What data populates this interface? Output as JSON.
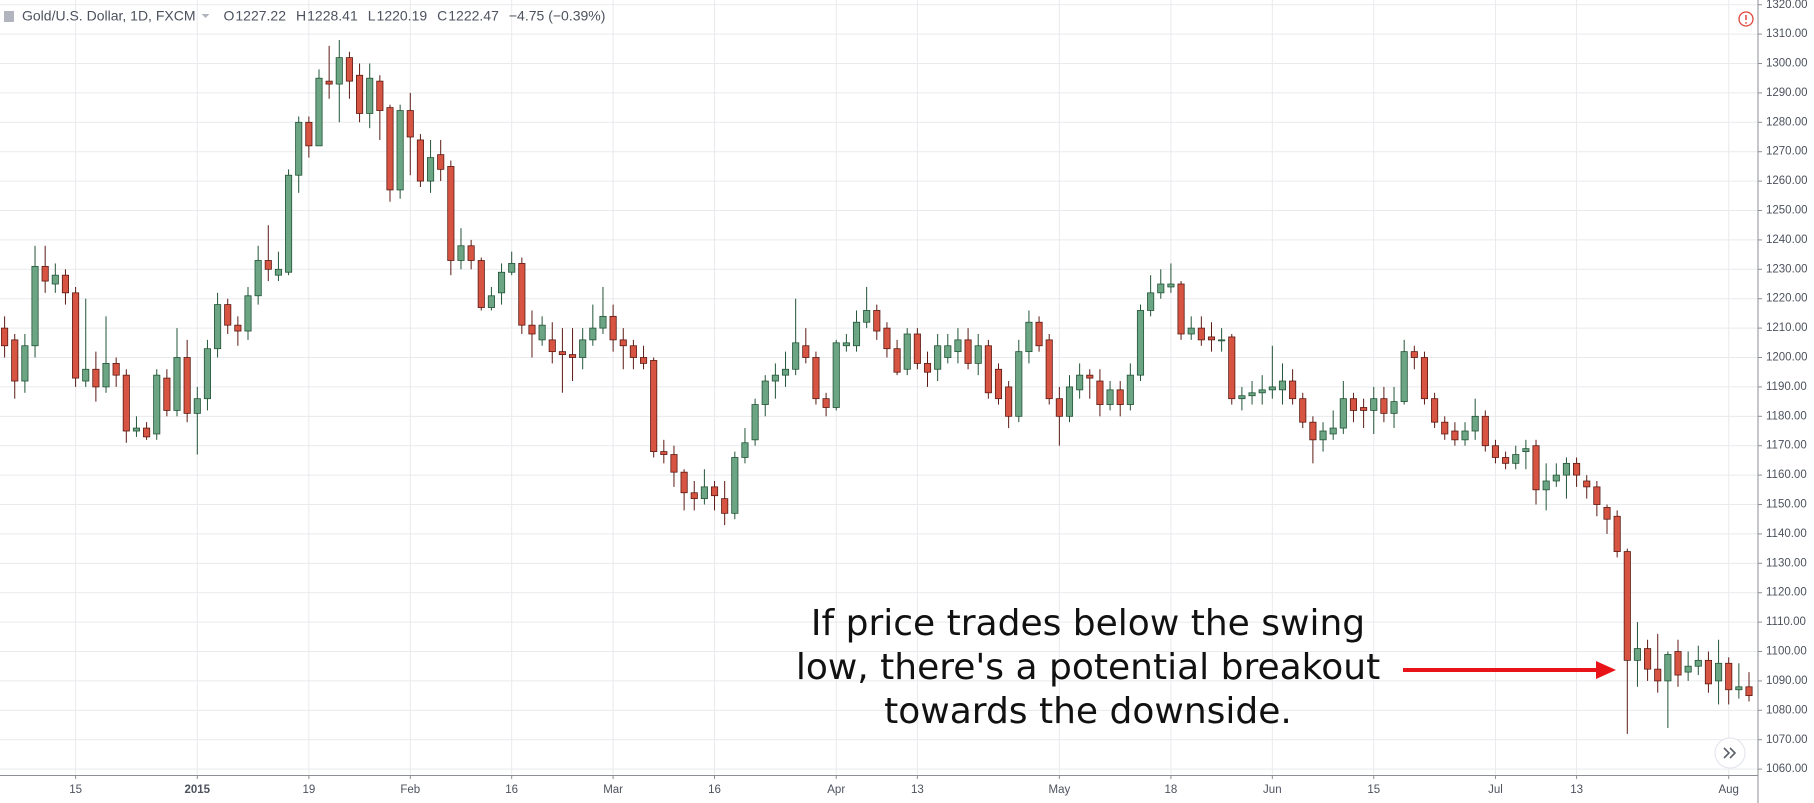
{
  "header": {
    "symbol": "Gold/U.S. Dollar, 1D, FXCM",
    "ohlc": [
      {
        "label": "O",
        "value": 1227.22
      },
      {
        "label": "H",
        "value": 1228.41
      },
      {
        "label": "L",
        "value": 1220.19
      },
      {
        "label": "C",
        "value": 1222.47
      }
    ],
    "change": "−4.75 (−0.39%)"
  },
  "chart_data": {
    "type": "candlestick",
    "categories": [
      null,
      null,
      null,
      null,
      null,
      null,
      null,
      "15",
      null,
      null,
      null,
      null,
      null,
      null,
      null,
      null,
      null,
      null,
      null,
      "2015",
      null,
      null,
      null,
      null,
      null,
      null,
      null,
      null,
      null,
      null,
      "19",
      null,
      null,
      null,
      null,
      null,
      null,
      null,
      null,
      null,
      "Feb",
      null,
      null,
      null,
      null,
      null,
      null,
      null,
      null,
      null,
      "16",
      null,
      null,
      null,
      null,
      null,
      null,
      null,
      null,
      null,
      "Mar",
      null,
      null,
      null,
      null,
      null,
      null,
      null,
      null,
      null,
      "16",
      null,
      null,
      null,
      null,
      null,
      null,
      null,
      null,
      null,
      null,
      null,
      "Apr",
      null,
      null,
      null,
      null,
      null,
      null,
      null,
      "13",
      null,
      null,
      null,
      null,
      null,
      null,
      null,
      null,
      null,
      null,
      null,
      null,
      null,
      "May",
      null,
      null,
      null,
      null,
      null,
      null,
      null,
      null,
      null,
      null,
      "18",
      null,
      null,
      null,
      null,
      null,
      null,
      null,
      null,
      null,
      "Jun",
      null,
      null,
      null,
      null,
      null,
      null,
      null,
      null,
      null,
      "15",
      null,
      null,
      null,
      null,
      null,
      null,
      null,
      null,
      null,
      null,
      null,
      "Jul",
      null,
      null,
      null,
      null,
      null,
      null,
      null,
      "13",
      null,
      null,
      null,
      null,
      null,
      null,
      null,
      null,
      null,
      null,
      null,
      null,
      null,
      null,
      "Aug",
      null,
      null
    ],
    "open": [
      1210,
      1206,
      1192,
      1204,
      1231,
      1225,
      1228,
      1222,
      1192,
      1196,
      1190,
      1198,
      1194,
      1175,
      1176,
      1174,
      1193,
      1182,
      1200,
      1181,
      1186,
      1203,
      1218,
      1211,
      1209,
      1221,
      1233,
      1228,
      1229,
      1262,
      1280,
      1272,
      1294,
      1293,
      1302,
      1296,
      1283,
      1294,
      1285,
      1257,
      1284,
      1274,
      1260,
      1269,
      1265,
      1233,
      1238,
      1233,
      1217,
      1222,
      1229,
      1232,
      1211,
      1206,
      1206,
      1202,
      1201,
      1200,
      1206,
      1210,
      1214,
      1206,
      1204,
      1200,
      1199,
      1168,
      1167,
      1161,
      1154,
      1152,
      1156,
      1152,
      1147,
      1166,
      1172,
      1184,
      1192,
      1194,
      1196,
      1204,
      1200,
      1186,
      1183,
      1204,
      1204,
      1212,
      1216,
      1210,
      1203,
      1196,
      1208,
      1198,
      1196,
      1200,
      1202,
      1206,
      1198,
      1204,
      1196,
      1190,
      1180,
      1202,
      1212,
      1206,
      1186,
      1180,
      1189,
      1194,
      1192,
      1184,
      1189,
      1184,
      1194,
      1216,
      1222,
      1224,
      1225,
      1208,
      1210,
      1207,
      1206,
      1207,
      1186,
      1187,
      1188,
      1189,
      1189,
      1192,
      1186,
      1178,
      1172,
      1174,
      1176,
      1186,
      1183,
      1182,
      1186,
      1181,
      1185,
      1202,
      1200,
      1186,
      1178,
      1175,
      1172,
      1175,
      1180,
      1170,
      1166,
      1164,
      1168,
      1170,
      1155,
      1158,
      1160,
      1164,
      1158,
      1156,
      1149,
      1146,
      1134,
      1097,
      1101,
      1094,
      1090,
      1100,
      1093,
      1095,
      1097,
      1090,
      1096,
      1087,
      1088
    ],
    "high": [
      1214,
      1208,
      1208,
      1238,
      1238,
      1232,
      1230,
      1224,
      1220,
      1202,
      1214,
      1200,
      1196,
      1180,
      1178,
      1196,
      1196,
      1210,
      1206,
      1190,
      1206,
      1222,
      1220,
      1214,
      1224,
      1238,
      1245,
      1236,
      1264,
      1282,
      1282,
      1298,
      1306,
      1308,
      1304,
      1300,
      1300,
      1296,
      1286,
      1286,
      1290,
      1276,
      1274,
      1274,
      1267,
      1244,
      1240,
      1234,
      1224,
      1232,
      1236,
      1234,
      1216,
      1214,
      1212,
      1210,
      1210,
      1210,
      1218,
      1224,
      1218,
      1210,
      1206,
      1204,
      1200,
      1172,
      1170,
      1162,
      1158,
      1162,
      1158,
      1158,
      1168,
      1176,
      1186,
      1194,
      1198,
      1202,
      1220,
      1210,
      1202,
      1188,
      1206,
      1208,
      1216,
      1224,
      1218,
      1212,
      1206,
      1210,
      1210,
      1202,
      1208,
      1208,
      1210,
      1210,
      1208,
      1206,
      1198,
      1192,
      1206,
      1216,
      1214,
      1208,
      1190,
      1194,
      1198,
      1196,
      1196,
      1192,
      1192,
      1198,
      1218,
      1228,
      1230,
      1232,
      1226,
      1214,
      1214,
      1212,
      1210,
      1208,
      1190,
      1192,
      1194,
      1204,
      1198,
      1196,
      1188,
      1180,
      1178,
      1182,
      1192,
      1188,
      1186,
      1190,
      1190,
      1190,
      1206,
      1204,
      1202,
      1188,
      1180,
      1178,
      1178,
      1186,
      1182,
      1172,
      1168,
      1170,
      1172,
      1172,
      1164,
      1164,
      1166,
      1166,
      1160,
      1158,
      1150,
      1148,
      1135,
      1110,
      1104,
      1106,
      1100,
      1104,
      1100,
      1102,
      1100,
      1104,
      1098,
      1096,
      1093
    ],
    "low": [
      1200,
      1186,
      1188,
      1200,
      1222,
      1222,
      1218,
      1190,
      1190,
      1185,
      1188,
      1190,
      1171,
      1173,
      1172,
      1172,
      1180,
      1180,
      1178,
      1167,
      1182,
      1200,
      1208,
      1204,
      1206,
      1218,
      1226,
      1226,
      1228,
      1256,
      1268,
      1272,
      1288,
      1280,
      1288,
      1280,
      1278,
      1274,
      1253,
      1254,
      1262,
      1258,
      1256,
      1260,
      1228,
      1230,
      1230,
      1216,
      1216,
      1218,
      1228,
      1208,
      1200,
      1204,
      1198,
      1188,
      1192,
      1196,
      1204,
      1208,
      1202,
      1196,
      1196,
      1196,
      1166,
      1164,
      1156,
      1148,
      1148,
      1150,
      1148,
      1143,
      1145,
      1164,
      1170,
      1180,
      1186,
      1190,
      1194,
      1198,
      1184,
      1180,
      1182,
      1202,
      1202,
      1210,
      1206,
      1200,
      1194,
      1194,
      1196,
      1190,
      1192,
      1198,
      1198,
      1196,
      1194,
      1186,
      1184,
      1176,
      1178,
      1198,
      1202,
      1184,
      1170,
      1178,
      1186,
      1186,
      1180,
      1182,
      1180,
      1182,
      1192,
      1214,
      1220,
      1222,
      1206,
      1206,
      1204,
      1202,
      1202,
      1184,
      1182,
      1184,
      1184,
      1186,
      1184,
      1184,
      1176,
      1164,
      1168,
      1172,
      1174,
      1178,
      1176,
      1174,
      1178,
      1176,
      1184,
      1196,
      1184,
      1176,
      1172,
      1170,
      1170,
      1172,
      1168,
      1164,
      1162,
      1162,
      1162,
      1150,
      1148,
      1156,
      1152,
      1156,
      1152,
      1146,
      1140,
      1132,
      1072,
      1088,
      1090,
      1086,
      1074,
      1088,
      1090,
      1092,
      1086,
      1082,
      1082,
      1084,
      1083
    ],
    "close": [
      1204,
      1192,
      1204,
      1231,
      1226,
      1228,
      1222,
      1193,
      1196,
      1190,
      1198,
      1194,
      1175,
      1176,
      1173,
      1194,
      1182,
      1200,
      1181,
      1186,
      1203,
      1218,
      1211,
      1209,
      1221,
      1233,
      1230,
      1230,
      1262,
      1280,
      1272,
      1295,
      1293,
      1302,
      1294,
      1283,
      1295,
      1284,
      1257,
      1284,
      1275,
      1260,
      1268,
      1264,
      1233,
      1238,
      1233,
      1217,
      1221,
      1229,
      1232,
      1211,
      1208,
      1211,
      1202,
      1201,
      1200,
      1206,
      1210,
      1214,
      1206,
      1204,
      1200,
      1198,
      1168,
      1167,
      1161,
      1154,
      1152,
      1156,
      1153,
      1147,
      1166,
      1171,
      1184,
      1192,
      1194,
      1196,
      1205,
      1200,
      1186,
      1183,
      1205,
      1205,
      1212,
      1216,
      1209,
      1203,
      1195,
      1208,
      1198,
      1195,
      1204,
      1204,
      1206,
      1198,
      1204,
      1188,
      1186,
      1180,
      1202,
      1212,
      1204,
      1186,
      1180,
      1190,
      1194,
      1193,
      1184,
      1189,
      1184,
      1194,
      1216,
      1222,
      1225,
      1225,
      1208,
      1210,
      1206,
      1206,
      1206,
      1186,
      1187,
      1188,
      1189,
      1190,
      1192,
      1186,
      1178,
      1172,
      1175,
      1176,
      1186,
      1182,
      1182,
      1186,
      1181,
      1185,
      1202,
      1200,
      1186,
      1178,
      1174,
      1172,
      1175,
      1180,
      1170,
      1166,
      1164,
      1167,
      1169,
      1155,
      1158,
      1160,
      1164,
      1160,
      1156,
      1150,
      1145,
      1134,
      1097,
      1101,
      1094,
      1090,
      1099,
      1092,
      1095,
      1097,
      1089,
      1096,
      1087,
      1088,
      1085
    ],
    "up_color": "#6ba583",
    "up_border": "#225437",
    "down_color": "#d75442",
    "down_border": "#5b1a13",
    "ylim": [
      1058,
      1321.6
    ],
    "yticks": [
      {
        "value": 1060,
        "label": "1060.00"
      },
      {
        "value": 1070,
        "label": "1070.00"
      },
      {
        "value": 1080,
        "label": "1080.00"
      },
      {
        "value": 1090,
        "label": "1090.00"
      },
      {
        "value": 1100,
        "label": "1100.00"
      },
      {
        "value": 1110,
        "label": "1110.00"
      },
      {
        "value": 1120,
        "label": "1120.00"
      },
      {
        "value": 1130,
        "label": "1130.00"
      },
      {
        "value": 1140,
        "label": "1140.00"
      },
      {
        "value": 1150,
        "label": "1150.00"
      },
      {
        "value": 1160,
        "label": "1160.00"
      },
      {
        "value": 1170,
        "label": "1170.00"
      },
      {
        "value": 1180,
        "label": "1180.00"
      },
      {
        "value": 1190,
        "label": "1190.00"
      },
      {
        "value": 1200,
        "label": "1200.00"
      },
      {
        "value": 1210,
        "label": "1210.00"
      },
      {
        "value": 1220,
        "label": "1220.00"
      },
      {
        "value": 1230,
        "label": "1230.00"
      },
      {
        "value": 1240,
        "label": "1240.00"
      },
      {
        "value": 1250,
        "label": "1250.00"
      },
      {
        "value": 1260,
        "label": "1260.00"
      },
      {
        "value": 1270,
        "label": "1270.00"
      },
      {
        "value": 1280,
        "label": "1280.00"
      },
      {
        "value": 1290,
        "label": "1290.00"
      },
      {
        "value": 1300,
        "label": "1300.00"
      },
      {
        "value": 1310,
        "label": "1310.00"
      },
      {
        "value": 1320,
        "label": "1320.00"
      }
    ],
    "grid": true,
    "annotation": [
      "If price trades below the swing",
      "low, there's a potential breakout",
      "towards the downside."
    ]
  }
}
